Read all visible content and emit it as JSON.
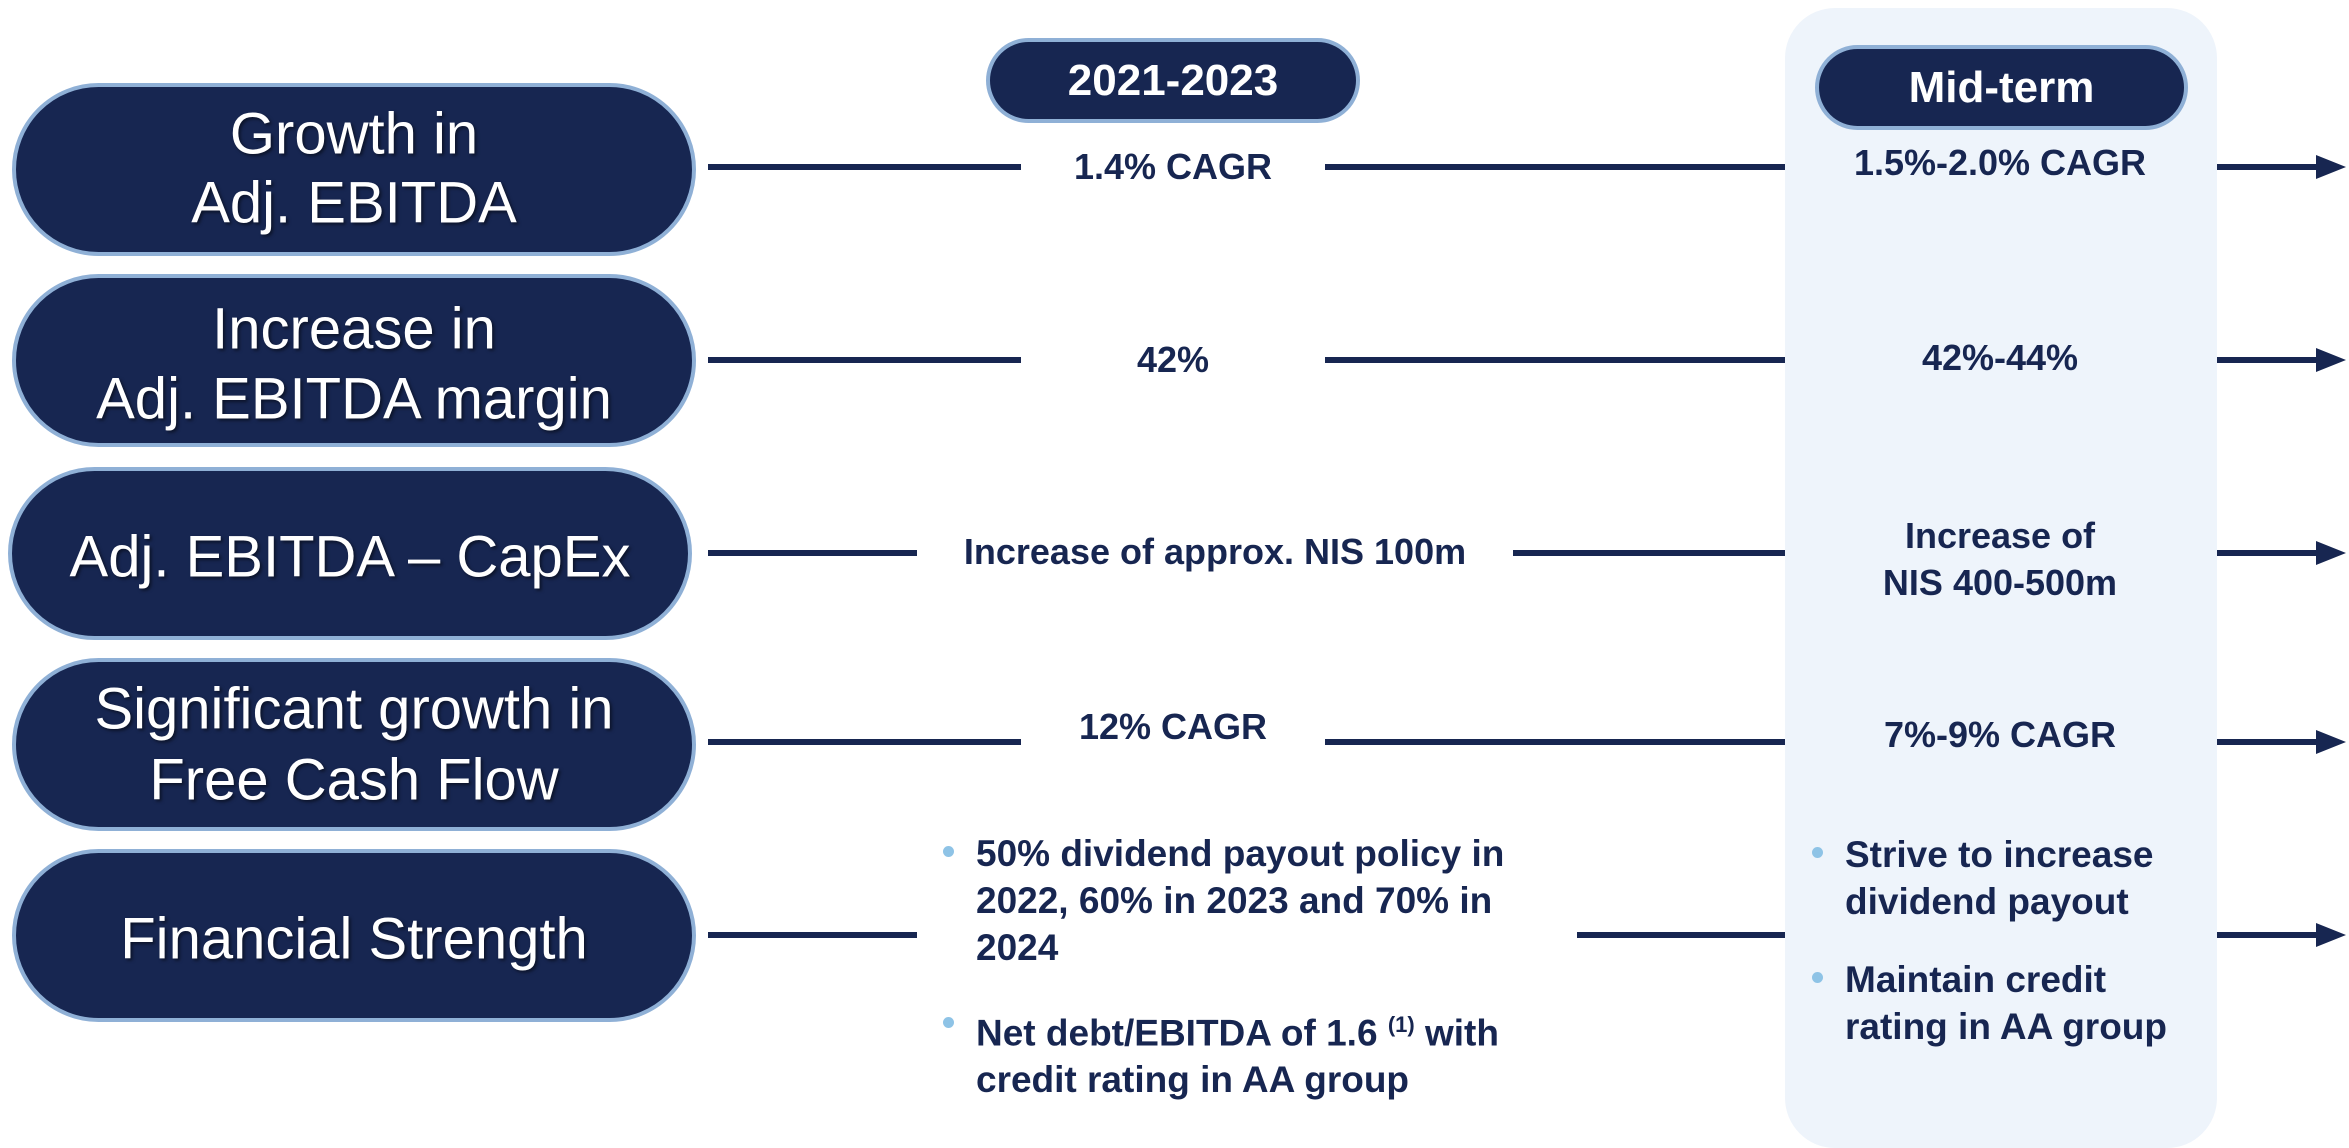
{
  "header": {
    "period": "2021-2023",
    "target": "Mid-term"
  },
  "rows": [
    {
      "label": [
        "Growth in",
        "Adj. EBITDA"
      ],
      "current": [
        "1.4% CAGR"
      ],
      "midterm": [
        "1.5%-2.0% CAGR"
      ]
    },
    {
      "label": [
        "Increase in",
        "Adj. EBITDA margin"
      ],
      "current": [
        "42%"
      ],
      "midterm": [
        "42%-44%"
      ]
    },
    {
      "label": [
        "Adj. EBITDA – CapEx"
      ],
      "current": [
        "Increase of approx. NIS 100m"
      ],
      "midterm": [
        "Increase of",
        "NIS 400-500m"
      ]
    },
    {
      "label": [
        "Significant growth in",
        "Free Cash Flow"
      ],
      "current": [
        "12% CAGR"
      ],
      "midterm": [
        "7%-9% CAGR"
      ]
    },
    {
      "label": [
        "Financial Strength"
      ],
      "current_bullets": [
        {
          "lines": [
            "50% dividend payout policy in",
            "2022, 60% in 2023 and 70% in",
            "2024"
          ]
        },
        {
          "lines": [
            "Net debt/EBITDA of 1.6",
            "credit rating in AA group"
          ],
          "note": "(1)",
          "note_tail": "with"
        }
      ],
      "midterm_bullets": [
        {
          "lines": [
            "Strive to increase",
            "dividend payout"
          ]
        },
        {
          "lines": [
            "Maintain credit",
            "rating in AA group"
          ]
        }
      ]
    }
  ]
}
